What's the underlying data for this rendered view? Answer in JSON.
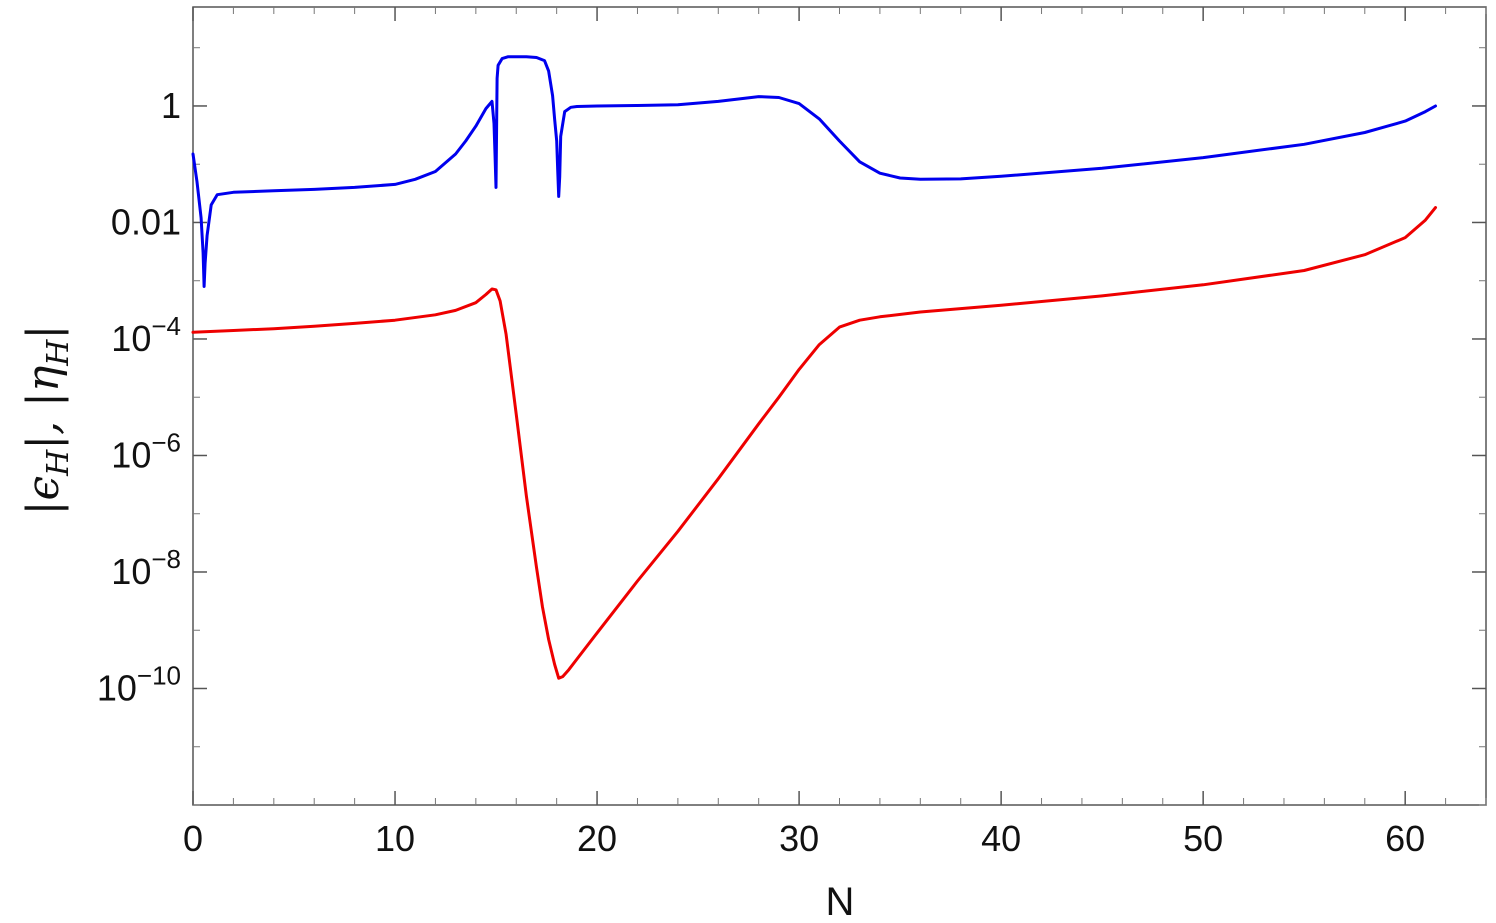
{
  "chart_data": {
    "type": "line",
    "title": "",
    "xlabel": "N",
    "ylabel": "|ε_H|, |η_H|",
    "ylabel_parts": [
      "|ϵ",
      "H",
      "|, |η",
      "H",
      "|"
    ],
    "xlim": [
      0,
      64
    ],
    "ylim": [
      1e-12,
      50
    ],
    "yscale": "log",
    "grid": false,
    "legend": "none",
    "x_ticks": [
      0,
      10,
      20,
      30,
      40,
      50,
      60
    ],
    "x_tick_labels": [
      "0",
      "10",
      "20",
      "30",
      "40",
      "50",
      "60"
    ],
    "y_major_ticks": [
      {
        "value": 1,
        "base": "1",
        "exp": ""
      },
      {
        "value": 0.01,
        "base": "0.01",
        "exp": ""
      },
      {
        "value": 0.0001,
        "base": "10",
        "exp": "−4"
      },
      {
        "value": 1e-06,
        "base": "10",
        "exp": "−6"
      },
      {
        "value": 1e-08,
        "base": "10",
        "exp": "−8"
      },
      {
        "value": 1e-10,
        "base": "10",
        "exp": "−10"
      }
    ],
    "series": [
      {
        "color": "#0000ee",
        "x": [
          0,
          0.2,
          0.4,
          0.5,
          0.55,
          0.6,
          0.7,
          0.9,
          1.2,
          2,
          4,
          6,
          8,
          10,
          11,
          12,
          13,
          13.5,
          14,
          14.5,
          14.8,
          14.9,
          14.95,
          15.0,
          15.05,
          15.1,
          15.3,
          15.6,
          16,
          16.5,
          17,
          17.4,
          17.6,
          17.8,
          17.9,
          18.0,
          18.05,
          18.1,
          18.15,
          18.2,
          18.4,
          18.7,
          19,
          20,
          22,
          24,
          26,
          28,
          29,
          30,
          31,
          32,
          33,
          34,
          35,
          36,
          38,
          40,
          45,
          50,
          55,
          58,
          60,
          61,
          61.5
        ],
        "y": [
          0.15,
          0.05,
          0.012,
          0.003,
          0.0008,
          0.002,
          0.006,
          0.02,
          0.03,
          0.033,
          0.035,
          0.037,
          0.04,
          0.045,
          0.055,
          0.075,
          0.15,
          0.25,
          0.45,
          0.9,
          1.2,
          0.5,
          0.15,
          0.04,
          3,
          5,
          6.5,
          7,
          7,
          7,
          6.8,
          6,
          4,
          1.5,
          0.6,
          0.25,
          0.08,
          0.028,
          0.06,
          0.3,
          0.8,
          0.95,
          0.98,
          1.0,
          1.02,
          1.05,
          1.2,
          1.45,
          1.4,
          1.1,
          0.6,
          0.25,
          0.11,
          0.07,
          0.058,
          0.055,
          0.056,
          0.062,
          0.085,
          0.13,
          0.22,
          0.35,
          0.55,
          0.8,
          1.0
        ]
      },
      {
        "color": "#ee0000",
        "x": [
          0,
          2,
          4,
          6,
          8,
          10,
          12,
          13,
          14,
          14.5,
          14.8,
          15.0,
          15.2,
          15.5,
          16,
          16.5,
          17,
          17.3,
          17.6,
          17.9,
          18.1,
          18.3,
          18.6,
          19,
          20,
          22,
          24,
          26,
          28,
          29,
          30,
          31,
          32,
          33,
          34,
          36,
          40,
          45,
          50,
          55,
          58,
          60,
          61,
          61.5
        ],
        "y": [
          0.00013,
          0.00014,
          0.00015,
          0.000165,
          0.000185,
          0.00021,
          0.00026,
          0.00031,
          0.00042,
          0.00058,
          0.00072,
          0.0007,
          0.00045,
          0.00012,
          5e-06,
          2e-07,
          1.2e-08,
          2.5e-09,
          7e-10,
          2.6e-10,
          1.5e-10,
          1.6e-10,
          2.1e-10,
          3.2e-10,
          9e-10,
          7e-09,
          5e-08,
          4e-07,
          3.5e-06,
          1e-05,
          3e-05,
          8e-05,
          0.00016,
          0.00021,
          0.00024,
          0.00029,
          0.00038,
          0.00055,
          0.00085,
          0.0015,
          0.0028,
          0.0055,
          0.011,
          0.018
        ]
      }
    ]
  }
}
